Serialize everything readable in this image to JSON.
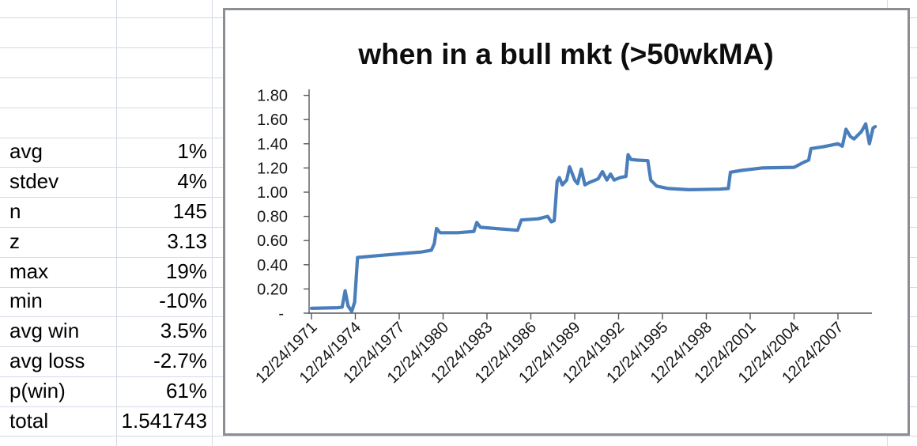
{
  "spreadsheet": {
    "stats": [
      {
        "label": "avg",
        "value": "1%"
      },
      {
        "label": "stdev",
        "value": "4%"
      },
      {
        "label": "n",
        "value": "145"
      },
      {
        "label": "z",
        "value": "3.13"
      },
      {
        "label": "max",
        "value": "19%"
      },
      {
        "label": "min",
        "value": "-10%"
      },
      {
        "label": "avg win",
        "value": "3.5%"
      },
      {
        "label": "avg loss",
        "value": "-2.7%"
      },
      {
        "label": "p(win)",
        "value": "61%"
      },
      {
        "label": "total",
        "value": "1.541743"
      }
    ]
  },
  "chart": {
    "title": "when in a bull mkt (>50wkMA)"
  },
  "colors": {
    "series_line": "#4a7ebb",
    "axis": "#595959",
    "sheet_gridline": "#d3dae6",
    "chart_border": "#8b8e92",
    "text": "#000000"
  },
  "chart_data": {
    "type": "line",
    "title": "when in a bull mkt (>50wkMA)",
    "x_axis": {
      "tick_labels": [
        "12/24/1971",
        "12/24/1974",
        "12/24/1977",
        "12/24/1980",
        "12/24/1983",
        "12/24/1986",
        "12/24/1989",
        "12/24/1992",
        "12/24/1995",
        "12/24/1998",
        "12/24/2001",
        "12/24/2004",
        "12/24/2007"
      ],
      "tick_interval_years": 3,
      "labels_rotation_deg": -45
    },
    "y_axis": {
      "tick_labels": [
        "1.80",
        "1.60",
        "1.40",
        "1.20",
        "1.00",
        "0.80",
        "0.60",
        "0.40",
        "0.20",
        "-"
      ],
      "max": 1.8,
      "step": 0.2,
      "min": 0
    },
    "grid": "off",
    "legend": "none",
    "series": [
      {
        "points_years_from_start_vs_value": [
          [
            0,
            0.04
          ],
          [
            1.8,
            0.045
          ],
          [
            2.1,
            0.05
          ],
          [
            2.3,
            0.185
          ],
          [
            2.5,
            0.06
          ],
          [
            2.75,
            0.015
          ],
          [
            2.95,
            0.09
          ],
          [
            3.15,
            0.46
          ],
          [
            4.5,
            0.475
          ],
          [
            6,
            0.49
          ],
          [
            7.5,
            0.505
          ],
          [
            8.2,
            0.52
          ],
          [
            8.4,
            0.575
          ],
          [
            8.55,
            0.7
          ],
          [
            8.8,
            0.665
          ],
          [
            10,
            0.665
          ],
          [
            11.1,
            0.675
          ],
          [
            11.3,
            0.75
          ],
          [
            11.55,
            0.71
          ],
          [
            12.5,
            0.7
          ],
          [
            14.1,
            0.685
          ],
          [
            14.35,
            0.77
          ],
          [
            15.5,
            0.78
          ],
          [
            16.15,
            0.8
          ],
          [
            16.4,
            0.755
          ],
          [
            16.6,
            0.765
          ],
          [
            16.8,
            1.09
          ],
          [
            16.95,
            1.12
          ],
          [
            17.15,
            1.06
          ],
          [
            17.45,
            1.1
          ],
          [
            17.65,
            1.21
          ],
          [
            18.0,
            1.1
          ],
          [
            18.2,
            1.07
          ],
          [
            18.45,
            1.19
          ],
          [
            18.7,
            1.06
          ],
          [
            19.0,
            1.08
          ],
          [
            19.6,
            1.11
          ],
          [
            19.9,
            1.17
          ],
          [
            20.2,
            1.1
          ],
          [
            20.45,
            1.15
          ],
          [
            20.7,
            1.1
          ],
          [
            21.1,
            1.12
          ],
          [
            21.5,
            1.13
          ],
          [
            21.65,
            1.31
          ],
          [
            21.85,
            1.27
          ],
          [
            22.3,
            1.265
          ],
          [
            23.0,
            1.26
          ],
          [
            23.2,
            1.1
          ],
          [
            23.6,
            1.05
          ],
          [
            24.4,
            1.03
          ],
          [
            25.8,
            1.02
          ],
          [
            27.9,
            1.025
          ],
          [
            28.5,
            1.03
          ],
          [
            28.65,
            1.165
          ],
          [
            29.4,
            1.18
          ],
          [
            30.8,
            1.2
          ],
          [
            33.0,
            1.205
          ],
          [
            33.7,
            1.25
          ],
          [
            34.0,
            1.265
          ],
          [
            34.15,
            1.36
          ],
          [
            35.0,
            1.375
          ],
          [
            36.0,
            1.4
          ],
          [
            36.3,
            1.38
          ],
          [
            36.55,
            1.52
          ],
          [
            36.85,
            1.46
          ],
          [
            37.1,
            1.44
          ],
          [
            37.6,
            1.5
          ],
          [
            37.9,
            1.565
          ],
          [
            38.15,
            1.4
          ],
          [
            38.4,
            1.53
          ],
          [
            38.55,
            1.542
          ]
        ]
      }
    ]
  }
}
